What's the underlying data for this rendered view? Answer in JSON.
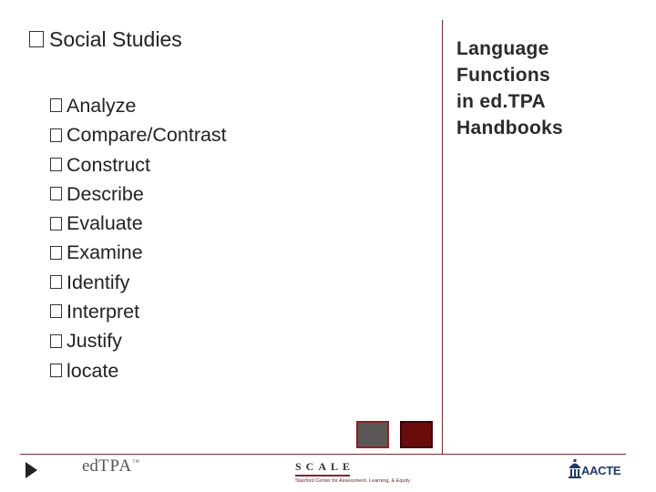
{
  "heading": "Social Studies",
  "bullets": [
    "Analyze",
    "Compare/Contrast",
    "Construct",
    "Describe",
    "Evaluate",
    "Examine",
    "Identify",
    "Interpret",
    "Justify",
    "locate"
  ],
  "side_title_lines": [
    "Language",
    "Functions",
    "in ed.TPA",
    "Handbooks"
  ],
  "footer": {
    "edtpa_logo": "ed",
    "edtpa_logo_tpa": "TPA",
    "edtpa_tm": "™",
    "scale_word": "SCALE",
    "scale_tagline": "Stanford Center for Assessment, Learning, & Equity",
    "aacte_word": "AACTE"
  },
  "colors": {
    "accent": "#8a2323",
    "dark_square": "#6b0c0c",
    "grey_square": "#5c5757",
    "aacte_blue": "#1f3a68"
  },
  "icons": {
    "bullet": "square-bullet-icon",
    "nav": "play-arrow-icon"
  }
}
